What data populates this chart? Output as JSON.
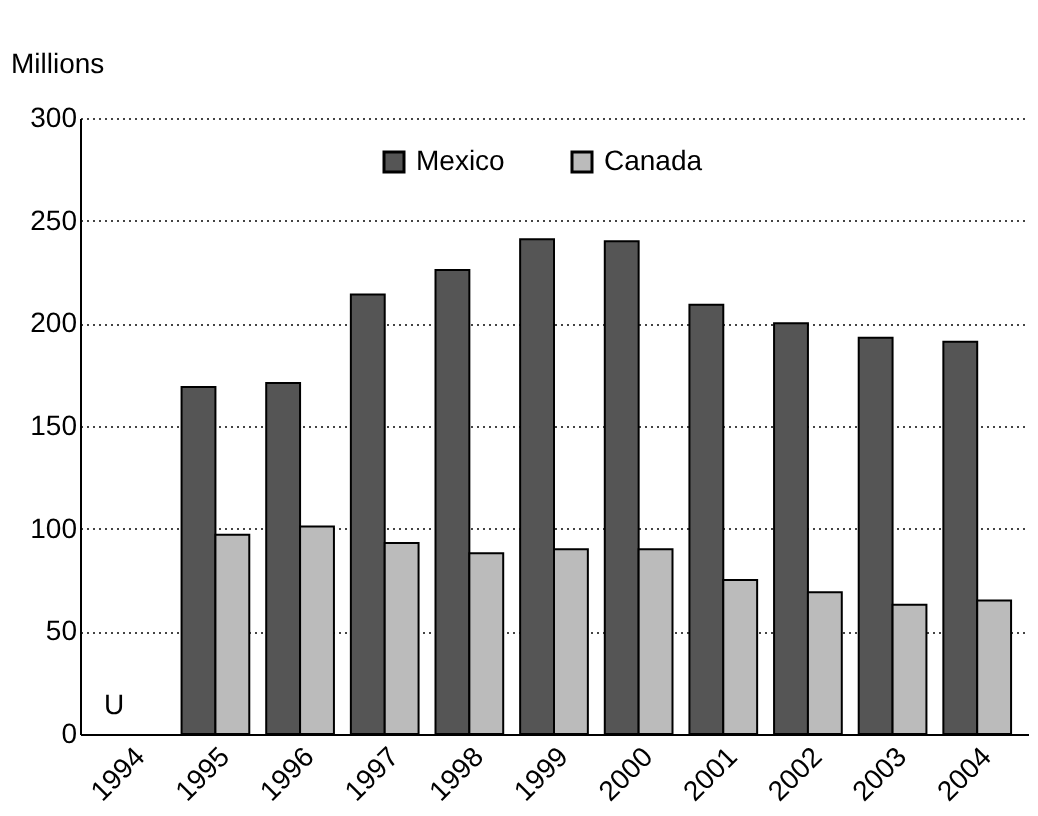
{
  "chart_data": {
    "type": "bar",
    "ylabel": "Millions",
    "categories": [
      "1994",
      "1995",
      "1996",
      "1997",
      "1998",
      "1999",
      "2000",
      "2001",
      "2002",
      "2003",
      "2004"
    ],
    "series": [
      {
        "name": "Mexico",
        "color": "#555555",
        "values": [
          null,
          169,
          171,
          214,
          226,
          241,
          240,
          209,
          200,
          193,
          191
        ]
      },
      {
        "name": "Canada",
        "color": "#bbbbbb",
        "values": [
          null,
          97,
          101,
          93,
          88,
          90,
          90,
          75,
          69,
          63,
          65
        ]
      }
    ],
    "ylim": [
      0,
      300
    ],
    "yticks": [
      0,
      50,
      100,
      150,
      200,
      250,
      300
    ],
    "grid": "y",
    "legend": "top",
    "annotations": [
      "U"
    ]
  }
}
